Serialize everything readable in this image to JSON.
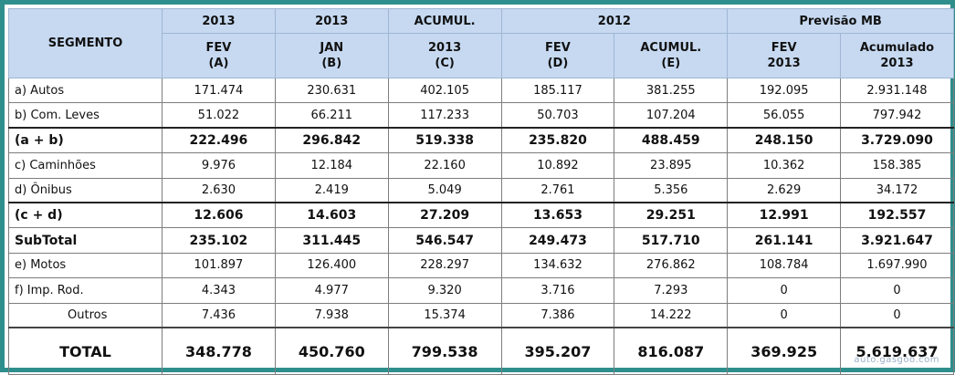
{
  "header": {
    "segment_label": "SEGMENTO",
    "row1": [
      "2013",
      "2013",
      "ACUMUL.",
      "2012",
      "Previsão MB"
    ],
    "row2": [
      "FEV\n(A)",
      "JAN\n(B)",
      "2013\n(C)",
      "FEV\n(D)",
      "ACUMUL.\n(E)",
      "FEV\n2013",
      "Acumulado\n2013"
    ]
  },
  "rows": [
    {
      "label": "a) Autos",
      "values": [
        "171.474",
        "230.631",
        "402.105",
        "185.117",
        "381.255",
        "192.095",
        "2.931.148"
      ]
    },
    {
      "label": "b) Com. Leves",
      "values": [
        "51.022",
        "66.211",
        "117.233",
        "50.703",
        "107.204",
        "56.055",
        "797.942"
      ]
    },
    {
      "label": "(a + b)",
      "values": [
        "222.496",
        "296.842",
        "519.338",
        "235.820",
        "488.459",
        "248.150",
        "3.729.090"
      ]
    },
    {
      "label": "c) Caminhões",
      "values": [
        "9.976",
        "12.184",
        "22.160",
        "10.892",
        "23.895",
        "10.362",
        "158.385"
      ]
    },
    {
      "label": "d) Ônibus",
      "values": [
        "2.630",
        "2.419",
        "5.049",
        "2.761",
        "5.356",
        "2.629",
        "34.172"
      ]
    },
    {
      "label": "(c + d)",
      "values": [
        "12.606",
        "14.603",
        "27.209",
        "13.653",
        "29.251",
        "12.991",
        "192.557"
      ]
    },
    {
      "label": "SubTotal",
      "values": [
        "235.102",
        "311.445",
        "546.547",
        "249.473",
        "517.710",
        "261.141",
        "3.921.647"
      ]
    },
    {
      "label": "e) Motos",
      "values": [
        "101.897",
        "126.400",
        "228.297",
        "134.632",
        "276.862",
        "108.784",
        "1.697.990"
      ]
    },
    {
      "label": "f) Imp. Rod.",
      "values": [
        "4.343",
        "4.977",
        "9.320",
        "3.716",
        "7.293",
        "0",
        "0"
      ]
    },
    {
      "label": "Outros",
      "values": [
        "7.436",
        "7.938",
        "15.374",
        "7.386",
        "14.222",
        "0",
        "0"
      ]
    }
  ],
  "total": {
    "label": "TOTAL",
    "values": [
      "348.778",
      "450.760",
      "799.538",
      "395.207",
      "816.087",
      "369.925",
      "5.619.637"
    ]
  },
  "watermark": "auto.gasgoo.com"
}
